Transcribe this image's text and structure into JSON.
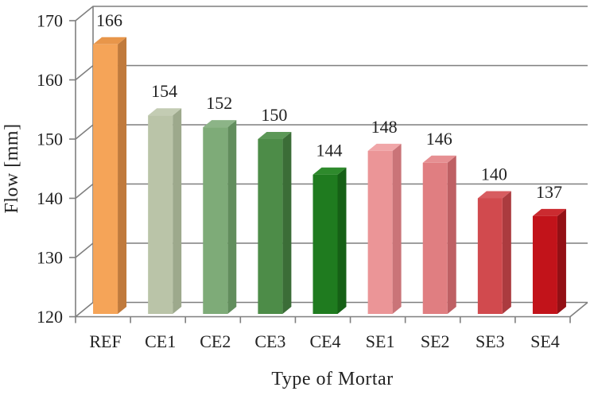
{
  "chart_data": {
    "type": "bar",
    "style": "3d",
    "title": "",
    "xlabel": "Type of Mortar",
    "ylabel": "Flow [mm]",
    "categories": [
      "REF",
      "CE1",
      "CE2",
      "CE3",
      "CE4",
      "SE1",
      "SE2",
      "SE3",
      "SE4"
    ],
    "values": [
      166,
      154,
      152,
      150,
      144,
      148,
      146,
      140,
      137
    ],
    "value_labels": [
      "166",
      "154",
      "152",
      "150",
      "144",
      "148",
      "146",
      "140",
      "137"
    ],
    "ylim": [
      120,
      170
    ],
    "yticks": [
      120,
      130,
      140,
      150,
      160,
      170
    ],
    "ytick_labels": [
      "120",
      "130",
      "140",
      "150",
      "160",
      "170"
    ],
    "grid": true,
    "legend_position": "none",
    "bar_colors": [
      {
        "category": "REF",
        "front": "#F5A458",
        "top": "#E8964A",
        "side": "#C07A3C"
      },
      {
        "category": "CE1",
        "front": "#BAC4A8",
        "top": "#C3CCB3",
        "side": "#9DA98C"
      },
      {
        "category": "CE2",
        "front": "#7EAB78",
        "top": "#8CB487",
        "side": "#628E5D"
      },
      {
        "category": "CE3",
        "front": "#4D8C48",
        "top": "#5C9857",
        "side": "#3B6D37"
      },
      {
        "category": "CE4",
        "front": "#1F7B1F",
        "top": "#2E8A2C",
        "side": "#166016"
      },
      {
        "category": "SE1",
        "front": "#EB9597",
        "top": "#F0A6A8",
        "side": "#CA7478"
      },
      {
        "category": "SE2",
        "front": "#E07E81",
        "top": "#E68F92",
        "side": "#BE6064"
      },
      {
        "category": "SE3",
        "front": "#D14A4E",
        "top": "#D75C60",
        "side": "#AB3B3F"
      },
      {
        "category": "SE4",
        "front": "#C2131A",
        "top": "#CB2B30",
        "side": "#931015"
      }
    ],
    "axis_color": "#7f7f7f",
    "text_color": "#222222"
  }
}
